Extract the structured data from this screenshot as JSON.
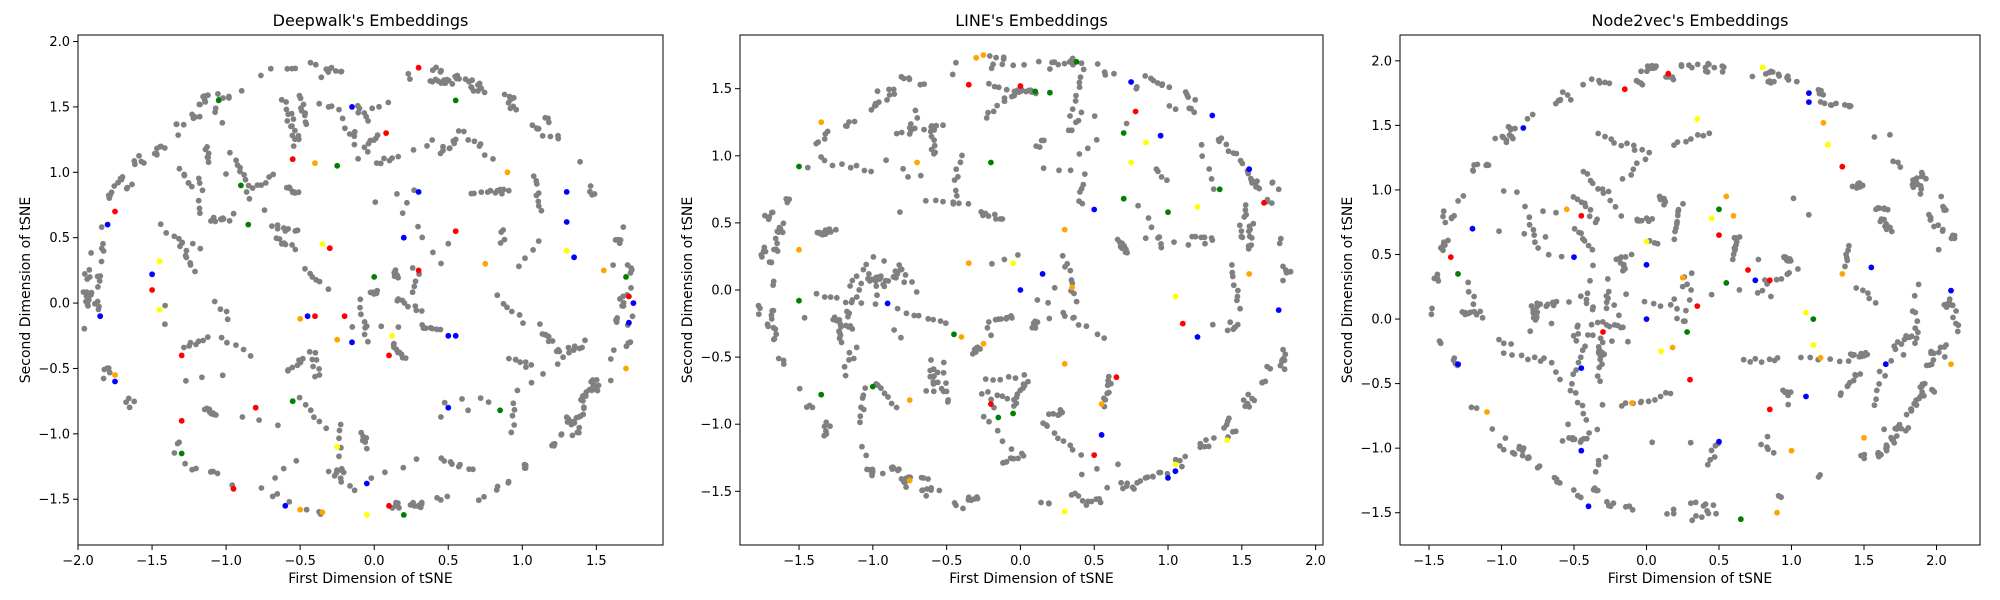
{
  "colors": {
    "gray": "#808080",
    "red": "#ff0000",
    "blue": "#0000ff",
    "green": "#008000",
    "orange": "#ffa500",
    "yellow": "#ffff00"
  },
  "chart_data": [
    {
      "type": "scatter",
      "title": "Deepwalk's Embeddings",
      "xlabel": "First Dimension of tSNE",
      "ylabel": "Second Dimension of tSNE",
      "xlim": [
        -2.0,
        1.95
      ],
      "ylim": [
        -1.85,
        2.05
      ],
      "xticks": [
        -2.0,
        -1.5,
        -1.0,
        -0.5,
        0.0,
        0.5,
        1.0,
        1.5
      ],
      "yticks": [
        -1.5,
        -1.0,
        -0.5,
        0.0,
        0.5,
        1.0,
        1.5,
        2.0
      ],
      "shape": {
        "cx": -0.1,
        "cy": 0.1,
        "rx": 1.87,
        "ry": 1.77
      },
      "grid": false,
      "points": [
        {
          "color": "red",
          "x": 0.3,
          "y": 1.8
        },
        {
          "color": "green",
          "x": -1.05,
          "y": 1.55
        },
        {
          "color": "blue",
          "x": -0.15,
          "y": 1.5
        },
        {
          "color": "green",
          "x": 0.55,
          "y": 1.55
        },
        {
          "color": "red",
          "x": 0.08,
          "y": 1.3
        },
        {
          "color": "red",
          "x": -0.55,
          "y": 1.1
        },
        {
          "color": "orange",
          "x": -0.4,
          "y": 1.07
        },
        {
          "color": "green",
          "x": -0.25,
          "y": 1.05
        },
        {
          "color": "orange",
          "x": 0.9,
          "y": 1.0
        },
        {
          "color": "red",
          "x": -1.75,
          "y": 0.7
        },
        {
          "color": "blue",
          "x": -1.8,
          "y": 0.6
        },
        {
          "color": "green",
          "x": -0.9,
          "y": 0.9
        },
        {
          "color": "blue",
          "x": 0.3,
          "y": 0.85
        },
        {
          "color": "blue",
          "x": 1.3,
          "y": 0.85
        },
        {
          "color": "red",
          "x": 0.55,
          "y": 0.55
        },
        {
          "color": "blue",
          "x": 0.2,
          "y": 0.5
        },
        {
          "color": "green",
          "x": -0.85,
          "y": 0.6
        },
        {
          "color": "yellow",
          "x": -1.45,
          "y": 0.32
        },
        {
          "color": "blue",
          "x": -1.5,
          "y": 0.22
        },
        {
          "color": "red",
          "x": -0.3,
          "y": 0.42
        },
        {
          "color": "yellow",
          "x": -0.35,
          "y": 0.45
        },
        {
          "color": "blue",
          "x": 1.3,
          "y": 0.62
        },
        {
          "color": "blue",
          "x": 1.35,
          "y": 0.35
        },
        {
          "color": "yellow",
          "x": 1.3,
          "y": 0.4
        },
        {
          "color": "orange",
          "x": 1.55,
          "y": 0.25
        },
        {
          "color": "green",
          "x": 1.7,
          "y": 0.2
        },
        {
          "color": "red",
          "x": 0.3,
          "y": 0.25
        },
        {
          "color": "green",
          "x": 0.0,
          "y": 0.2
        },
        {
          "color": "orange",
          "x": 0.75,
          "y": 0.3
        },
        {
          "color": "blue",
          "x": 1.75,
          "y": 0.0
        },
        {
          "color": "red",
          "x": 1.72,
          "y": 0.05
        },
        {
          "color": "red",
          "x": -1.5,
          "y": 0.1
        },
        {
          "color": "yellow",
          "x": -1.45,
          "y": -0.05
        },
        {
          "color": "blue",
          "x": -1.85,
          "y": -0.1
        },
        {
          "color": "blue",
          "x": -0.45,
          "y": -0.1
        },
        {
          "color": "red",
          "x": -0.4,
          "y": -0.1
        },
        {
          "color": "orange",
          "x": -0.5,
          "y": -0.12
        },
        {
          "color": "red",
          "x": -0.2,
          "y": -0.1
        },
        {
          "color": "blue",
          "x": -0.15,
          "y": -0.3
        },
        {
          "color": "blue",
          "x": 0.5,
          "y": -0.25
        },
        {
          "color": "blue",
          "x": 0.55,
          "y": -0.25
        },
        {
          "color": "red",
          "x": 0.1,
          "y": -0.4
        },
        {
          "color": "yellow",
          "x": 0.12,
          "y": -0.25
        },
        {
          "color": "orange",
          "x": -0.25,
          "y": -0.28
        },
        {
          "color": "red",
          "x": -1.3,
          "y": -0.4
        },
        {
          "color": "orange",
          "x": -1.75,
          "y": -0.55
        },
        {
          "color": "blue",
          "x": -1.75,
          "y": -0.6
        },
        {
          "color": "orange",
          "x": 1.7,
          "y": -0.5
        },
        {
          "color": "blue",
          "x": 1.72,
          "y": -0.15
        },
        {
          "color": "green",
          "x": -0.55,
          "y": -0.75
        },
        {
          "color": "red",
          "x": -0.8,
          "y": -0.8
        },
        {
          "color": "blue",
          "x": 0.5,
          "y": -0.8
        },
        {
          "color": "green",
          "x": 0.85,
          "y": -0.82
        },
        {
          "color": "red",
          "x": -1.3,
          "y": -0.9
        },
        {
          "color": "yellow",
          "x": -0.25,
          "y": -1.1
        },
        {
          "color": "green",
          "x": -1.3,
          "y": -1.15
        },
        {
          "color": "red",
          "x": -0.95,
          "y": -1.42
        },
        {
          "color": "blue",
          "x": -0.6,
          "y": -1.55
        },
        {
          "color": "orange",
          "x": -0.5,
          "y": -1.58
        },
        {
          "color": "orange",
          "x": -0.35,
          "y": -1.6
        },
        {
          "color": "yellow",
          "x": -0.05,
          "y": -1.62
        },
        {
          "color": "blue",
          "x": -0.05,
          "y": -1.38
        },
        {
          "color": "green",
          "x": 0.2,
          "y": -1.62
        },
        {
          "color": "red",
          "x": 0.1,
          "y": -1.55
        }
      ]
    },
    {
      "type": "scatter",
      "title": "LINE's Embeddings",
      "xlabel": "First Dimension of tSNE",
      "ylabel": "Second Dimension of tSNE",
      "xlim": [
        -1.9,
        2.05
      ],
      "ylim": [
        -1.9,
        1.9
      ],
      "xticks": [
        -1.5,
        -1.0,
        -0.5,
        0.0,
        0.5,
        1.0,
        1.5,
        2.0
      ],
      "yticks": [
        -1.5,
        -1.0,
        -0.5,
        0.0,
        0.5,
        1.0,
        1.5
      ],
      "shape": {
        "cx": 0.05,
        "cy": 0.05,
        "rx": 1.85,
        "ry": 1.72
      },
      "grid": false,
      "points": [
        {
          "color": "orange",
          "x": -0.25,
          "y": 1.75
        },
        {
          "color": "orange",
          "x": -0.3,
          "y": 1.73
        },
        {
          "color": "green",
          "x": 0.38,
          "y": 1.7
        },
        {
          "color": "red",
          "x": -0.35,
          "y": 1.53
        },
        {
          "color": "red",
          "x": 0.0,
          "y": 1.52
        },
        {
          "color": "green",
          "x": 0.1,
          "y": 1.48
        },
        {
          "color": "blue",
          "x": 0.75,
          "y": 1.55
        },
        {
          "color": "green",
          "x": 0.2,
          "y": 1.47
        },
        {
          "color": "orange",
          "x": -1.35,
          "y": 1.25
        },
        {
          "color": "red",
          "x": 0.78,
          "y": 1.33
        },
        {
          "color": "green",
          "x": 0.7,
          "y": 1.17
        },
        {
          "color": "blue",
          "x": 0.95,
          "y": 1.15
        },
        {
          "color": "yellow",
          "x": 0.85,
          "y": 1.1
        },
        {
          "color": "blue",
          "x": 1.3,
          "y": 1.3
        },
        {
          "color": "yellow",
          "x": 0.75,
          "y": 0.95
        },
        {
          "color": "green",
          "x": -1.5,
          "y": 0.92
        },
        {
          "color": "orange",
          "x": -0.7,
          "y": 0.95
        },
        {
          "color": "green",
          "x": -0.2,
          "y": 0.95
        },
        {
          "color": "blue",
          "x": 1.55,
          "y": 0.9
        },
        {
          "color": "green",
          "x": 1.35,
          "y": 0.75
        },
        {
          "color": "yellow",
          "x": 1.2,
          "y": 0.62
        },
        {
          "color": "red",
          "x": 1.65,
          "y": 0.65
        },
        {
          "color": "blue",
          "x": 0.5,
          "y": 0.6
        },
        {
          "color": "green",
          "x": 0.7,
          "y": 0.68
        },
        {
          "color": "orange",
          "x": 0.3,
          "y": 0.45
        },
        {
          "color": "green",
          "x": 1.0,
          "y": 0.58
        },
        {
          "color": "orange",
          "x": -0.35,
          "y": 0.2
        },
        {
          "color": "yellow",
          "x": -0.05,
          "y": 0.2
        },
        {
          "color": "orange",
          "x": -1.5,
          "y": 0.3
        },
        {
          "color": "orange",
          "x": 1.55,
          "y": 0.12
        },
        {
          "color": "blue",
          "x": 0.15,
          "y": 0.12
        },
        {
          "color": "orange",
          "x": 0.35,
          "y": 0.02
        },
        {
          "color": "green",
          "x": -1.5,
          "y": -0.08
        },
        {
          "color": "blue",
          "x": -0.9,
          "y": -0.1
        },
        {
          "color": "blue",
          "x": 0.0,
          "y": 0.0
        },
        {
          "color": "yellow",
          "x": 1.05,
          "y": -0.05
        },
        {
          "color": "blue",
          "x": 1.75,
          "y": -0.15
        },
        {
          "color": "red",
          "x": 1.1,
          "y": -0.25
        },
        {
          "color": "blue",
          "x": 1.2,
          "y": -0.35
        },
        {
          "color": "orange",
          "x": -0.4,
          "y": -0.35
        },
        {
          "color": "orange",
          "x": -0.25,
          "y": -0.4
        },
        {
          "color": "green",
          "x": -0.45,
          "y": -0.33
        },
        {
          "color": "orange",
          "x": 0.3,
          "y": -0.55
        },
        {
          "color": "red",
          "x": 0.65,
          "y": -0.65
        },
        {
          "color": "green",
          "x": -1.35,
          "y": -0.78
        },
        {
          "color": "green",
          "x": -1.0,
          "y": -0.72
        },
        {
          "color": "orange",
          "x": -0.75,
          "y": -0.82
        },
        {
          "color": "red",
          "x": -0.2,
          "y": -0.85
        },
        {
          "color": "green",
          "x": -0.05,
          "y": -0.92
        },
        {
          "color": "green",
          "x": -0.15,
          "y": -0.95
        },
        {
          "color": "orange",
          "x": 0.55,
          "y": -0.85
        },
        {
          "color": "blue",
          "x": 0.55,
          "y": -1.08
        },
        {
          "color": "red",
          "x": 0.5,
          "y": -1.23
        },
        {
          "color": "yellow",
          "x": 1.05,
          "y": -1.3
        },
        {
          "color": "blue",
          "x": 1.05,
          "y": -1.35
        },
        {
          "color": "blue",
          "x": 1.0,
          "y": -1.4
        },
        {
          "color": "yellow",
          "x": 1.4,
          "y": -1.12
        },
        {
          "color": "orange",
          "x": -0.75,
          "y": -1.42
        },
        {
          "color": "yellow",
          "x": 0.3,
          "y": -1.65
        }
      ]
    },
    {
      "type": "scatter",
      "title": "Node2vec's Embeddings",
      "xlabel": "First Dimension of tSNE",
      "ylabel": "Second Dimension of tSNE",
      "xlim": [
        -1.7,
        2.3
      ],
      "ylim": [
        -1.75,
        2.2
      ],
      "xticks": [
        -1.5,
        -1.0,
        -0.5,
        0.0,
        0.5,
        1.0,
        1.5,
        2.0
      ],
      "yticks": [
        -1.5,
        -1.0,
        -0.5,
        0.0,
        0.5,
        1.0,
        1.5,
        2.0
      ],
      "shape": {
        "cx": 0.33,
        "cy": 0.22,
        "rx": 1.85,
        "ry": 1.77
      },
      "grid": false,
      "points": [
        {
          "color": "red",
          "x": -0.15,
          "y": 1.78
        },
        {
          "color": "red",
          "x": 0.15,
          "y": 1.9
        },
        {
          "color": "yellow",
          "x": 0.8,
          "y": 1.95
        },
        {
          "color": "blue",
          "x": 1.12,
          "y": 1.75
        },
        {
          "color": "blue",
          "x": 1.12,
          "y": 1.68
        },
        {
          "color": "blue",
          "x": -0.85,
          "y": 1.48
        },
        {
          "color": "yellow",
          "x": 0.35,
          "y": 1.55
        },
        {
          "color": "orange",
          "x": 1.22,
          "y": 1.52
        },
        {
          "color": "yellow",
          "x": 1.25,
          "y": 1.35
        },
        {
          "color": "red",
          "x": 1.35,
          "y": 1.18
        },
        {
          "color": "red",
          "x": -0.45,
          "y": 0.8
        },
        {
          "color": "orange",
          "x": -0.55,
          "y": 0.85
        },
        {
          "color": "blue",
          "x": -1.2,
          "y": 0.7
        },
        {
          "color": "red",
          "x": -1.35,
          "y": 0.48
        },
        {
          "color": "green",
          "x": -1.3,
          "y": 0.35
        },
        {
          "color": "orange",
          "x": 0.55,
          "y": 0.95
        },
        {
          "color": "green",
          "x": 0.5,
          "y": 0.85
        },
        {
          "color": "yellow",
          "x": 0.45,
          "y": 0.78
        },
        {
          "color": "orange",
          "x": 0.6,
          "y": 0.8
        },
        {
          "color": "red",
          "x": 0.5,
          "y": 0.65
        },
        {
          "color": "yellow",
          "x": 0.0,
          "y": 0.6
        },
        {
          "color": "blue",
          "x": -0.5,
          "y": 0.48
        },
        {
          "color": "blue",
          "x": 0.0,
          "y": 0.42
        },
        {
          "color": "red",
          "x": 0.7,
          "y": 0.38
        },
        {
          "color": "blue",
          "x": 0.75,
          "y": 0.3
        },
        {
          "color": "orange",
          "x": 1.35,
          "y": 0.35
        },
        {
          "color": "blue",
          "x": 1.55,
          "y": 0.4
        },
        {
          "color": "blue",
          "x": 2.1,
          "y": 0.22
        },
        {
          "color": "orange",
          "x": 0.25,
          "y": 0.32
        },
        {
          "color": "green",
          "x": 0.55,
          "y": 0.28
        },
        {
          "color": "red",
          "x": 0.85,
          "y": 0.3
        },
        {
          "color": "red",
          "x": 0.35,
          "y": 0.1
        },
        {
          "color": "yellow",
          "x": 1.1,
          "y": 0.05
        },
        {
          "color": "green",
          "x": 1.15,
          "y": 0.0
        },
        {
          "color": "blue",
          "x": 0.0,
          "y": 0.0
        },
        {
          "color": "red",
          "x": -0.3,
          "y": -0.1
        },
        {
          "color": "green",
          "x": 0.28,
          "y": -0.1
        },
        {
          "color": "orange",
          "x": 0.18,
          "y": -0.22
        },
        {
          "color": "yellow",
          "x": 0.1,
          "y": -0.25
        },
        {
          "color": "red",
          "x": 0.3,
          "y": -0.47
        },
        {
          "color": "yellow",
          "x": 1.15,
          "y": -0.2
        },
        {
          "color": "orange",
          "x": 1.2,
          "y": -0.3
        },
        {
          "color": "blue",
          "x": 1.65,
          "y": -0.35
        },
        {
          "color": "orange",
          "x": 2.1,
          "y": -0.35
        },
        {
          "color": "blue",
          "x": -1.3,
          "y": -0.35
        },
        {
          "color": "orange",
          "x": -1.1,
          "y": -0.72
        },
        {
          "color": "blue",
          "x": -0.45,
          "y": -0.38
        },
        {
          "color": "orange",
          "x": -0.1,
          "y": -0.65
        },
        {
          "color": "blue",
          "x": 1.1,
          "y": -0.6
        },
        {
          "color": "red",
          "x": 0.85,
          "y": -0.7
        },
        {
          "color": "blue",
          "x": 0.5,
          "y": -0.95
        },
        {
          "color": "blue",
          "x": -0.45,
          "y": -1.02
        },
        {
          "color": "orange",
          "x": 1.0,
          "y": -1.02
        },
        {
          "color": "orange",
          "x": 1.5,
          "y": -0.92
        },
        {
          "color": "blue",
          "x": -0.4,
          "y": -1.45
        },
        {
          "color": "green",
          "x": 0.65,
          "y": -1.55
        },
        {
          "color": "orange",
          "x": 0.9,
          "y": -1.5
        }
      ]
    }
  ]
}
